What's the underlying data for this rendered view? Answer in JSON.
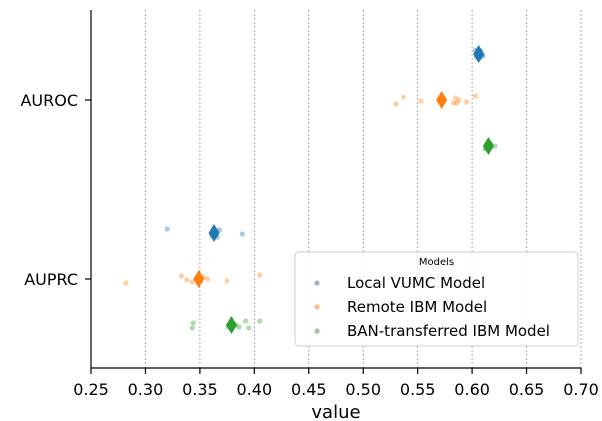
{
  "chart_data": {
    "type": "scatter",
    "xlabel": "value",
    "ylabel": "",
    "xlim": [
      0.25,
      0.7
    ],
    "x_ticks": [
      "0.25",
      "0.30",
      "0.35",
      "0.40",
      "0.45",
      "0.50",
      "0.55",
      "0.60",
      "0.65",
      "0.70"
    ],
    "categories": [
      "AUROC",
      "AUPRC"
    ],
    "grid": "vertical dotted",
    "legend": {
      "title": "Models",
      "placement": "lower-right"
    },
    "series": [
      {
        "name": "Local VUMC Model",
        "color": "#1f77b4",
        "points": {
          "AUROC": [
            0.603,
            0.605,
            0.606,
            0.607,
            0.608,
            0.609,
            0.604,
            0.606,
            0.607,
            0.61
          ],
          "AUPRC": [
            0.32,
            0.361,
            0.364,
            0.366,
            0.368,
            0.389,
            0.362,
            0.365
          ]
        },
        "mean": {
          "AUROC": 0.606,
          "AUPRC": 0.363
        }
      },
      {
        "name": "Remote IBM Model",
        "color": "#ff7f0e",
        "points": {
          "AUROC": [
            0.53,
            0.537,
            0.553,
            0.583,
            0.585,
            0.588,
            0.595,
            0.603,
            0.586
          ],
          "AUPRC": [
            0.282,
            0.333,
            0.338,
            0.343,
            0.353,
            0.357,
            0.375,
            0.405
          ]
        },
        "mean": {
          "AUROC": 0.572,
          "AUPRC": 0.349
        }
      },
      {
        "name": "BAN-transferred IBM Model",
        "color": "#2ca02c",
        "points": {
          "AUROC": [
            0.612,
            0.617,
            0.621,
            0.613
          ],
          "AUPRC": [
            0.343,
            0.344,
            0.383,
            0.386,
            0.392,
            0.395,
            0.405,
            0.376
          ]
        },
        "mean": {
          "AUROC": 0.615,
          "AUPRC": 0.379
        }
      }
    ]
  }
}
